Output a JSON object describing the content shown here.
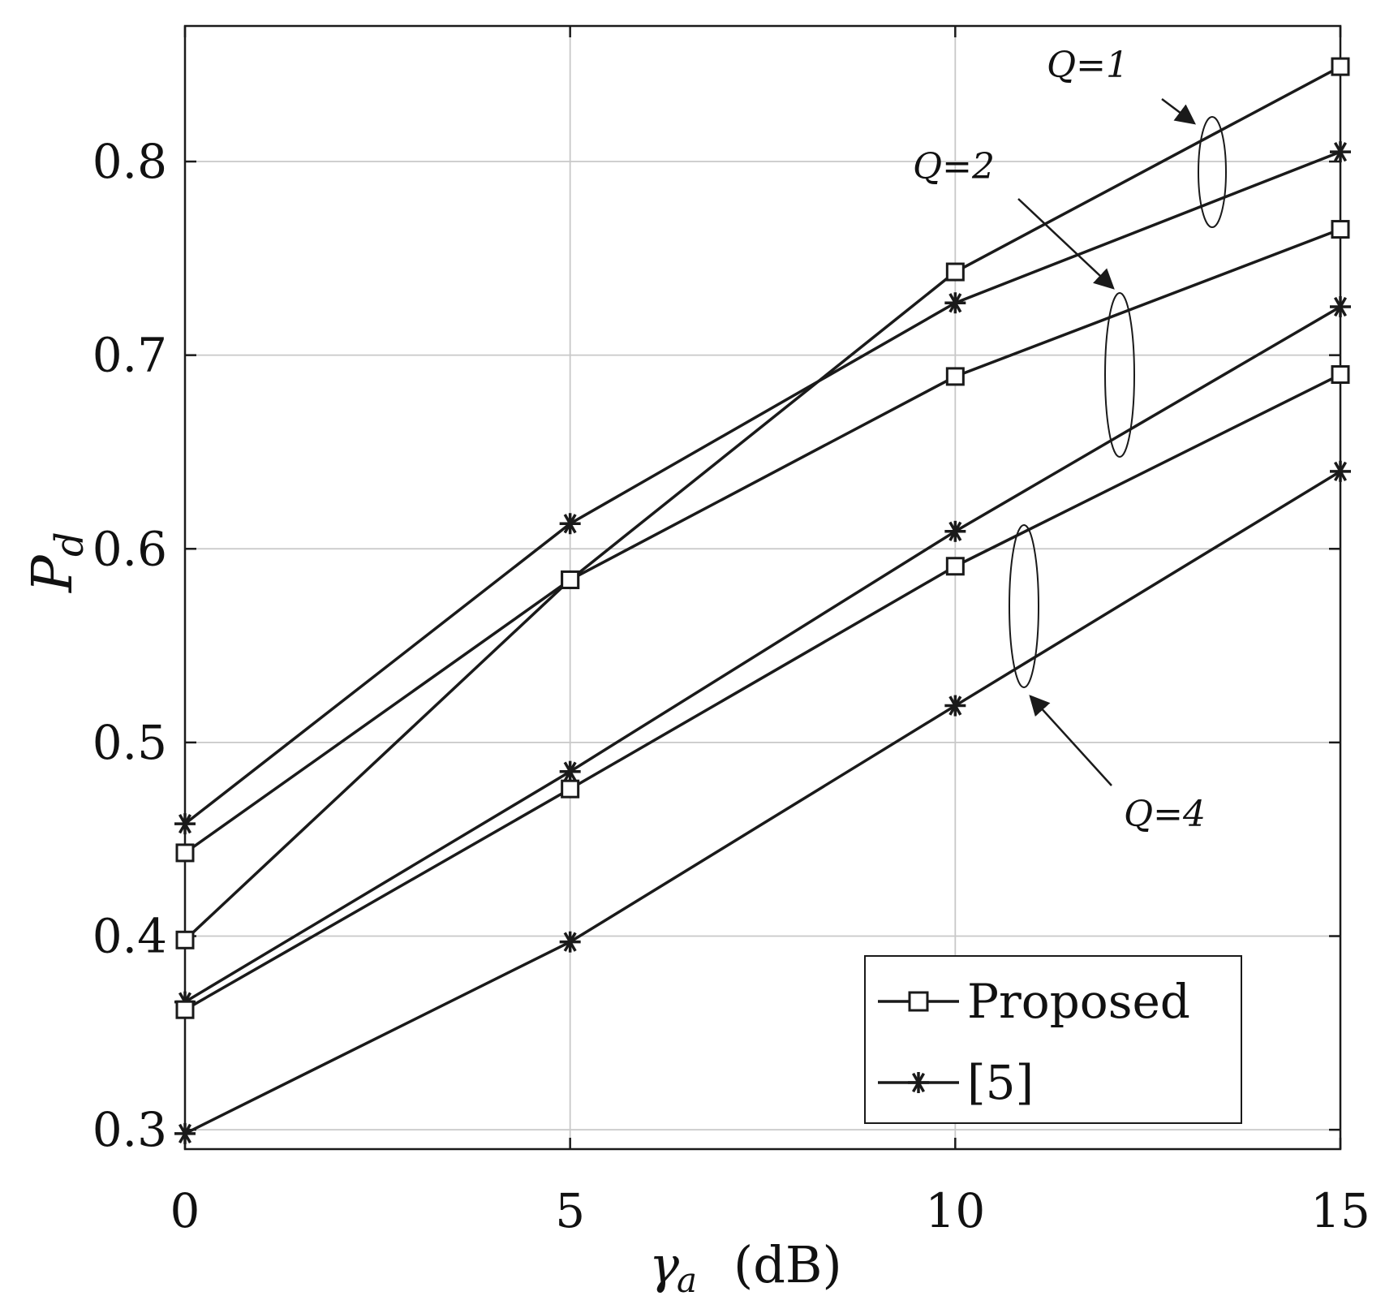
{
  "chart_data": {
    "type": "line",
    "xlabel": "γa (dB)",
    "xlabel_main": "γ",
    "xlabel_sub": "a",
    "xlabel_unit": "(dB)",
    "ylabel": "Pd",
    "ylabel_main": "P",
    "ylabel_sub": "d",
    "xlim": [
      0,
      15
    ],
    "ylim": [
      0.29,
      0.87
    ],
    "xticks": [
      0,
      5,
      10,
      15
    ],
    "xtick_labels": [
      "0",
      "5",
      "10",
      "15"
    ],
    "yticks": [
      0.3,
      0.4,
      0.5,
      0.6,
      0.7,
      0.8
    ],
    "ytick_labels": [
      "0.3",
      "0.4",
      "0.5",
      "0.6",
      "0.7",
      "0.8"
    ],
    "grid": true,
    "legend_position": "bottom-right",
    "legend": [
      {
        "label": "Proposed",
        "marker": "square"
      },
      {
        "label": "[5]",
        "marker": "asterisk"
      }
    ],
    "x": [
      0,
      5,
      10,
      15
    ],
    "series": [
      {
        "group": "Q=1",
        "method": "Proposed",
        "marker": "square",
        "values": [
          0.398,
          0.584,
          0.743,
          0.849
        ]
      },
      {
        "group": "Q=1",
        "method": "[5]",
        "marker": "asterisk",
        "values": [
          0.458,
          0.613,
          0.727,
          0.805
        ]
      },
      {
        "group": "Q=2",
        "method": "Proposed",
        "marker": "square",
        "values": [
          0.443,
          0.584,
          0.689,
          0.765
        ]
      },
      {
        "group": "Q=2",
        "method": "[5]",
        "marker": "asterisk",
        "values": [
          0.366,
          0.485,
          0.609,
          0.725
        ]
      },
      {
        "group": "Q=4",
        "method": "Proposed",
        "marker": "square",
        "values": [
          0.362,
          0.476,
          0.591,
          0.69
        ]
      },
      {
        "group": "Q=4",
        "method": "[5]",
        "marker": "asterisk",
        "values": [
          0.298,
          0.397,
          0.519,
          0.64
        ]
      }
    ],
    "annotations": [
      {
        "text": "Q=1",
        "group": "Q=1"
      },
      {
        "text": "Q=2",
        "group": "Q=2"
      },
      {
        "text": "Q=4",
        "group": "Q=4"
      }
    ],
    "colors": {
      "line": "#1a1a1a",
      "grid": "#c8c8c8",
      "axes": "#1a1a1a"
    }
  }
}
